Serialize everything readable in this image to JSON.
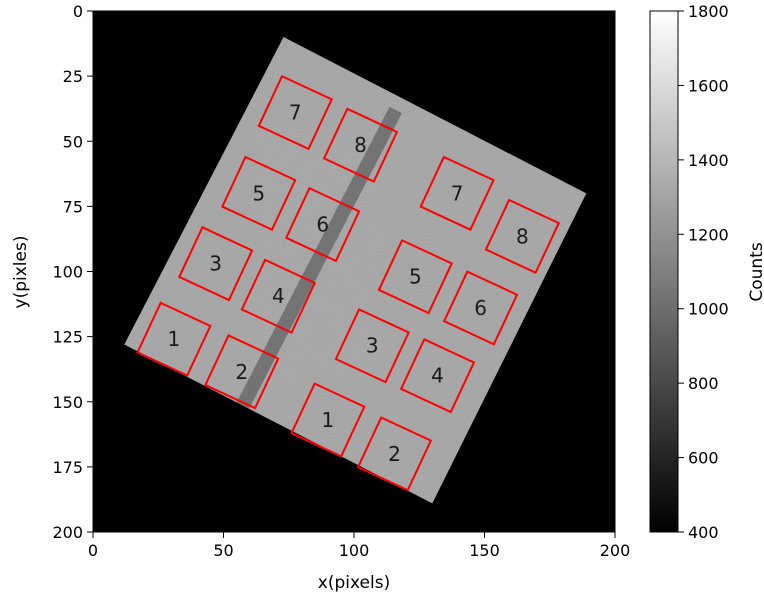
{
  "chart_data": {
    "type": "heatmap",
    "title": "",
    "xlabel": "x(pixels)",
    "ylabel": "y(pixles)",
    "xlim": [
      0,
      200
    ],
    "ylim": [
      200,
      0
    ],
    "xticks": [
      0,
      50,
      100,
      150,
      200
    ],
    "yticks": [
      0,
      25,
      50,
      75,
      100,
      125,
      150,
      175,
      200
    ],
    "colorbar": {
      "label": "Counts",
      "range": [
        400,
        1800
      ],
      "ticks": [
        400,
        600,
        800,
        1000,
        1200,
        1400,
        1600,
        1800
      ],
      "colormap": "gray"
    },
    "image": {
      "background_value": 400,
      "sample_outline": [
        [
          73,
          10
        ],
        [
          189,
          70
        ],
        [
          130,
          189
        ],
        [
          12,
          128
        ]
      ],
      "mean_counts": 1300,
      "stripe": [
        [
          116,
          38
        ],
        [
          53,
          160
        ]
      ]
    },
    "roi_color": "#ff0000",
    "rois": [
      {
        "label": "7",
        "center": [
          77.5,
          39.0
        ]
      },
      {
        "label": "8",
        "center": [
          102.5,
          51.5
        ]
      },
      {
        "label": "5",
        "center": [
          63.5,
          70.0
        ]
      },
      {
        "label": "6",
        "center": [
          88.0,
          82.0
        ]
      },
      {
        "label": "3",
        "center": [
          47.0,
          97.0
        ]
      },
      {
        "label": "4",
        "center": [
          71.0,
          109.5
        ]
      },
      {
        "label": "1",
        "center": [
          31.0,
          126.0
        ]
      },
      {
        "label": "2",
        "center": [
          57.0,
          138.5
        ]
      },
      {
        "label": "7",
        "center": [
          139.5,
          70.0
        ]
      },
      {
        "label": "8",
        "center": [
          164.5,
          86.5
        ]
      },
      {
        "label": "5",
        "center": [
          123.5,
          102.0
        ]
      },
      {
        "label": "6",
        "center": [
          148.5,
          114.0
        ]
      },
      {
        "label": "3",
        "center": [
          107.0,
          128.5
        ]
      },
      {
        "label": "4",
        "center": [
          132.0,
          140.0
        ]
      },
      {
        "label": "1",
        "center": [
          90.0,
          157.0
        ]
      },
      {
        "label": "2",
        "center": [
          115.5,
          170.0
        ]
      }
    ],
    "roi_size": 21,
    "roi_rotation_deg": 25
  }
}
